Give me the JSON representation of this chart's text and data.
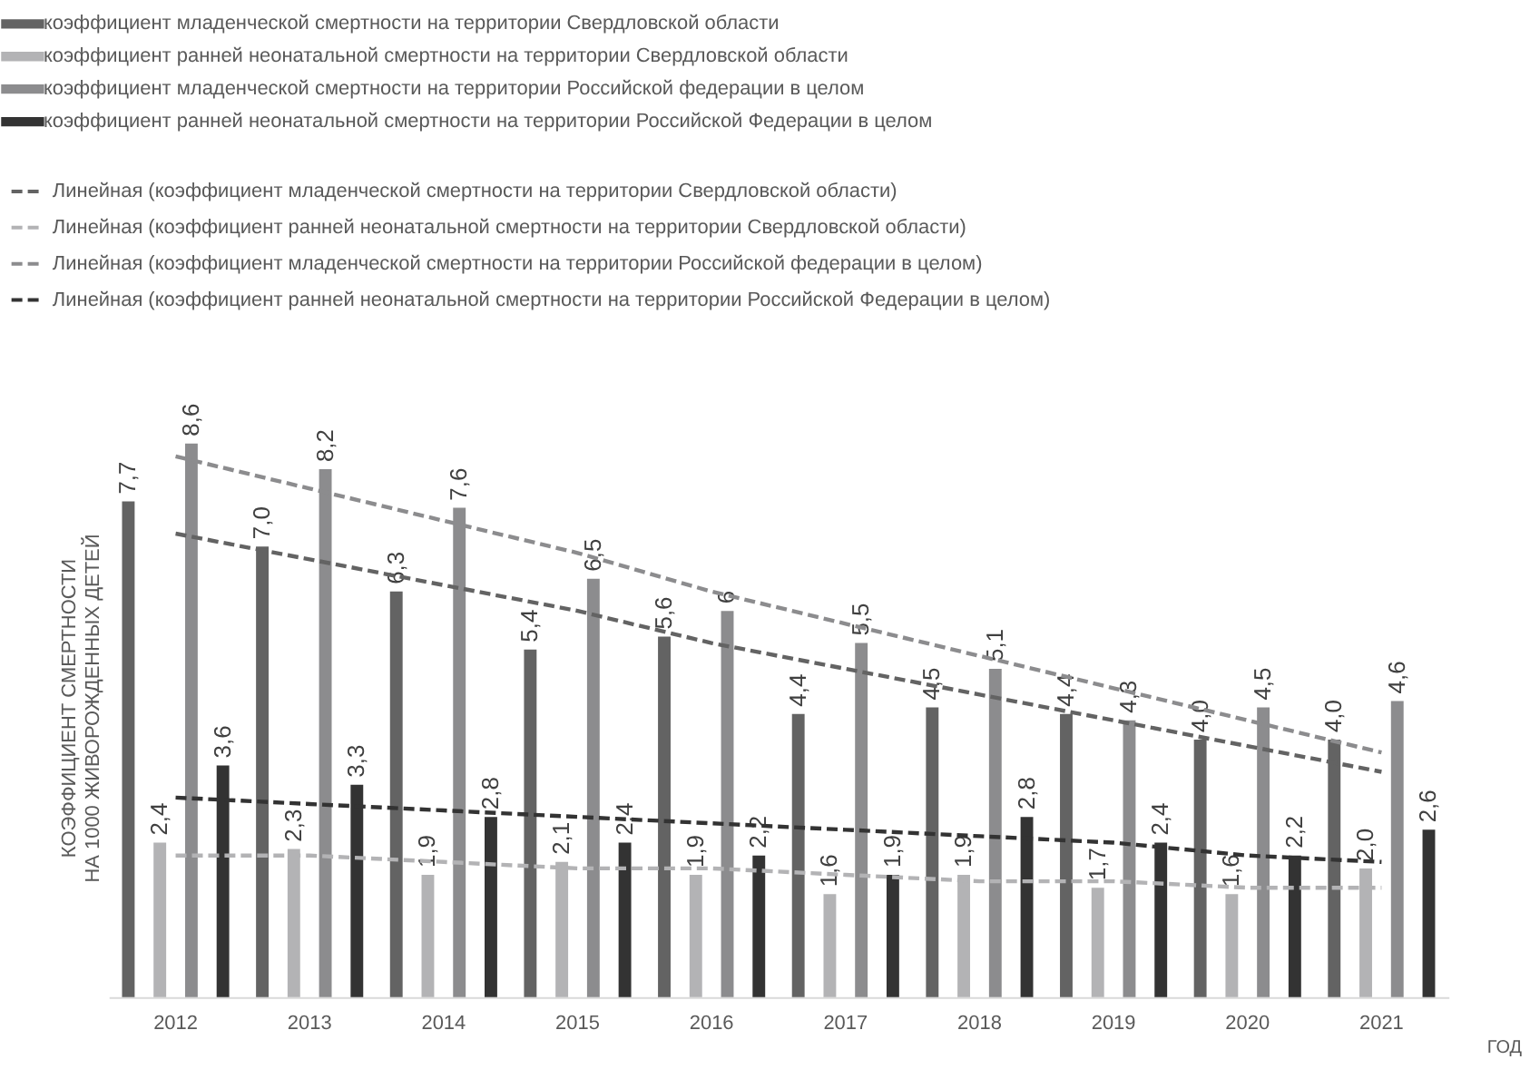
{
  "chart_data": {
    "type": "bar",
    "categories": [
      "2012",
      "2013",
      "2014",
      "2015",
      "2016",
      "2017",
      "2018",
      "2019",
      "2020",
      "2021"
    ],
    "xlabel": "ГОД",
    "ylabel": "КОЭФФИЦИЕНТ СМЕРТНОСТИ НА 1000 ЖИВОРОЖДЕННЫХ ДЕТЕЙ",
    "legend": "top left",
    "series": [
      {
        "name": "коэффициент младенческой смертности на территории Свердловской области",
        "color": "#636363",
        "values": [
          7.7,
          7.0,
          6.3,
          5.4,
          5.6,
          4.4,
          4.5,
          4.4,
          4.0,
          4.0
        ],
        "value_labels": [
          "7,7",
          "7,0",
          "6,3",
          "5,4",
          "5,6",
          "4,4",
          "4,5",
          "4,4",
          "4,0",
          "4,0"
        ]
      },
      {
        "name": "коэффициент ранней неонатальной смертности на территории Свердловской области",
        "color": "#b3b3b5",
        "values": [
          2.4,
          2.3,
          1.9,
          2.1,
          1.9,
          1.6,
          1.9,
          1.7,
          1.6,
          2.0
        ],
        "value_labels": [
          "2,4",
          "2,3",
          "1,9",
          "2,1",
          "1,9",
          "1,6",
          "1,9",
          "1,7",
          "1,6",
          "2,0"
        ]
      },
      {
        "name": "коэффициент младенческой смертности на территории Российской федерации в целом",
        "color": "#8c8c8e",
        "values": [
          8.6,
          8.2,
          7.6,
          6.5,
          6,
          5.5,
          5.1,
          4.3,
          4.5,
          4.6
        ],
        "value_labels": [
          "8,6",
          "8,2",
          "7,6",
          "6,5",
          "6",
          "5,5",
          "5,1",
          "4,3",
          "4,5",
          "4,6"
        ]
      },
      {
        "name": "коэффициент ранней неонатальной смертности на территории Российской Федерации в целом",
        "color": "#333333",
        "values": [
          3.6,
          3.3,
          2.8,
          2.4,
          2.2,
          1.9,
          2.8,
          2.4,
          2.2,
          2.6
        ],
        "value_labels": [
          "3,6",
          "3,3",
          "2,8",
          "2,4",
          "2,2",
          "1,9",
          "2,8",
          "2,4",
          "2,2",
          "2,6"
        ]
      },
      {
        "type": "line",
        "name": "Линейная (коэффициент младенческой смертности на территории Свердловской области)",
        "color": "#636363",
        "line_style": "dashed",
        "values": [
          7.2,
          6.8,
          6.4,
          6.0,
          5.5,
          5.1,
          4.7,
          4.3,
          3.9,
          3.5
        ]
      },
      {
        "type": "line",
        "name": "Линейная (коэффициент ранней неонатальной смертности на территории Свердловской области)",
        "color": "#b3b3b5",
        "line_style": "dashed",
        "values": [
          2.2,
          2.2,
          2.1,
          2.0,
          2.0,
          1.9,
          1.8,
          1.8,
          1.7,
          1.7
        ]
      },
      {
        "type": "line",
        "name": "Линейная (коэффициент младенческой смертности на территории Российской федерации в целом)",
        "color": "#8c8c8e",
        "line_style": "dashed",
        "values": [
          8.4,
          7.9,
          7.4,
          6.9,
          6.3,
          5.8,
          5.3,
          4.8,
          4.3,
          3.8
        ]
      },
      {
        "type": "line",
        "name": "Линейная (коэффициент ранней неонатальной смертности на территории Российской Федерации в целом)",
        "color": "#333333",
        "line_style": "dashed",
        "values": [
          3.1,
          3.0,
          2.9,
          2.8,
          2.7,
          2.6,
          2.5,
          2.4,
          2.2,
          2.1
        ]
      }
    ]
  }
}
